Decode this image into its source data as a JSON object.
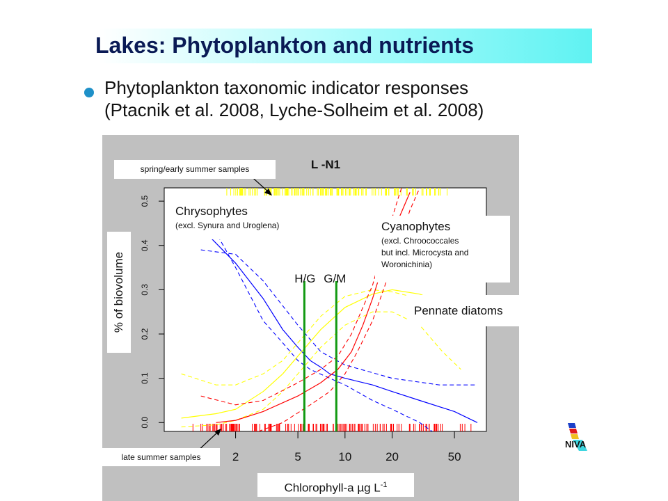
{
  "title": "Lakes: Phytoplankton and nutrients",
  "bullet": {
    "line1": "Phytoplankton taxonomic indicator responses",
    "line2": "(Ptacnik et al. 2008, Lyche-Solheim et al. 2008)"
  },
  "colors": {
    "bullet": "#1e90c8",
    "chrysophytes": "#0000ff",
    "diatoms": "#ffff00",
    "cyanophytes": "#ff0000",
    "boundary": "#119911",
    "panel": "#c0c0c0"
  },
  "annotations": {
    "spring_samples": "spring/early summer samples",
    "late_samples": "late summer samples",
    "chrysophytes_title": "Chrysophytes",
    "chrysophytes_sub": "(excl. Synura and Uroglena)",
    "cyanophytes_title": "Cyanophytes",
    "cyanophytes_sub1": "(excl. Chroococcales",
    "cyanophytes_sub2": "but incl. Microcysta and",
    "cyanophytes_sub3": "Woronichinia)",
    "pennate_diatoms": "Pennate diatoms",
    "y_label": "% of biovolume",
    "x_label_main": "Chlorophyll-a µg L",
    "x_label_sup": "-1"
  },
  "logo": {
    "text": "NIVA"
  },
  "chart_data": {
    "type": "line",
    "title": "L -N1",
    "x_scale": "log",
    "xlabel": "Chlorophyll-a µg L-1",
    "ylabel": "% of biovolume",
    "xlim": [
      0.7,
      80
    ],
    "ylim": [
      -0.02,
      0.53
    ],
    "x_ticks": [
      {
        "value": 2,
        "label": "2"
      },
      {
        "value": 5,
        "label": "5"
      },
      {
        "value": 10,
        "label": "10"
      },
      {
        "value": 20,
        "label": "20"
      },
      {
        "value": 50,
        "label": "50"
      }
    ],
    "y_ticks": [
      {
        "value": 0.0,
        "label": "0.0"
      },
      {
        "value": 0.1,
        "label": "0.1"
      },
      {
        "value": 0.2,
        "label": "0.2"
      },
      {
        "value": 0.3,
        "label": "0.3"
      },
      {
        "value": 0.4,
        "label": "0.4"
      },
      {
        "value": 0.5,
        "label": "0.5"
      }
    ],
    "boundaries": [
      {
        "label": "H/G",
        "x": 5.5
      },
      {
        "label": "G/M",
        "x": 8.8
      }
    ],
    "series": [
      {
        "name": "Chrysophytes",
        "color": "#0000ff",
        "fit": [
          [
            1.2,
            0.44
          ],
          [
            2,
            0.36
          ],
          [
            3,
            0.28
          ],
          [
            4,
            0.21
          ],
          [
            5,
            0.17
          ],
          [
            6,
            0.14
          ],
          [
            7,
            0.125
          ],
          [
            8,
            0.11
          ],
          [
            10,
            0.1
          ],
          [
            15,
            0.085
          ],
          [
            20,
            0.07
          ],
          [
            30,
            0.05
          ],
          [
            50,
            0.025
          ],
          [
            70,
            0.0
          ]
        ],
        "upper": [
          [
            1.2,
            0.39
          ],
          [
            2,
            0.38
          ],
          [
            3,
            0.32
          ],
          [
            5,
            0.22
          ],
          [
            7,
            0.16
          ],
          [
            10,
            0.13
          ],
          [
            20,
            0.1
          ],
          [
            40,
            0.085
          ],
          [
            70,
            0.085
          ]
        ],
        "lower": [
          [
            1.2,
            0.49
          ],
          [
            2,
            0.35
          ],
          [
            3,
            0.23
          ],
          [
            4,
            0.18
          ],
          [
            5,
            0.14
          ],
          [
            6,
            0.12
          ],
          [
            8,
            0.1
          ],
          [
            10,
            0.085
          ],
          [
            15,
            0.05
          ],
          [
            20,
            0.03
          ],
          [
            30,
            0.0
          ],
          [
            36,
            -0.02
          ]
        ]
      },
      {
        "name": "Pennate diatoms",
        "color": "#ffff00",
        "fit": [
          [
            0.9,
            0.01
          ],
          [
            1.5,
            0.02
          ],
          [
            2,
            0.03
          ],
          [
            3,
            0.07
          ],
          [
            4,
            0.11
          ],
          [
            5,
            0.15
          ],
          [
            7,
            0.21
          ],
          [
            10,
            0.26
          ],
          [
            15,
            0.29
          ],
          [
            20,
            0.3
          ],
          [
            30,
            0.29
          ],
          [
            42,
            0.27
          ],
          [
            55,
            0.22
          ]
        ],
        "upper": [
          [
            0.9,
            0.11
          ],
          [
            1.5,
            0.085
          ],
          [
            2,
            0.085
          ],
          [
            3,
            0.11
          ],
          [
            4,
            0.14
          ],
          [
            5,
            0.18
          ],
          [
            7,
            0.24
          ],
          [
            10,
            0.285
          ],
          [
            15,
            0.3
          ],
          [
            20,
            0.295
          ],
          [
            30,
            0.28
          ],
          [
            55,
            0.23
          ]
        ],
        "lower": [
          [
            0.9,
            -0.01
          ],
          [
            1.5,
            -0.005
          ],
          [
            2,
            0.005
          ],
          [
            3,
            0.03
          ],
          [
            4,
            0.07
          ],
          [
            5,
            0.11
          ],
          [
            7,
            0.17
          ],
          [
            10,
            0.22
          ],
          [
            15,
            0.25
          ],
          [
            20,
            0.25
          ],
          [
            30,
            0.22
          ],
          [
            42,
            0.16
          ],
          [
            55,
            0.12
          ]
        ]
      },
      {
        "name": "Cyanophytes",
        "color": "#ff0000",
        "fit": [
          [
            1.5,
            0.0
          ],
          [
            2,
            0.005
          ],
          [
            3,
            0.025
          ],
          [
            5,
            0.06
          ],
          [
            7,
            0.09
          ],
          [
            9,
            0.12
          ],
          [
            11,
            0.16
          ],
          [
            13,
            0.22
          ],
          [
            15,
            0.28
          ],
          [
            18,
            0.37
          ],
          [
            22,
            0.46
          ],
          [
            26,
            0.52
          ]
        ],
        "upper": [
          [
            1.2,
            0.06
          ],
          [
            2,
            0.04
          ],
          [
            3,
            0.05
          ],
          [
            5,
            0.09
          ],
          [
            7,
            0.12
          ],
          [
            9,
            0.15
          ],
          [
            11,
            0.2
          ],
          [
            13,
            0.26
          ],
          [
            15,
            0.31
          ],
          [
            18,
            0.41
          ],
          [
            22,
            0.51
          ],
          [
            24,
            0.55
          ]
        ],
        "lower": [
          [
            2.8,
            -0.02
          ],
          [
            4,
            0.0
          ],
          [
            6,
            0.04
          ],
          [
            8,
            0.07
          ],
          [
            10,
            0.11
          ],
          [
            12,
            0.16
          ],
          [
            15,
            0.23
          ],
          [
            18,
            0.31
          ],
          [
            22,
            0.4
          ],
          [
            26,
            0.48
          ],
          [
            30,
            0.53
          ]
        ]
      }
    ],
    "rug_top": {
      "color": "#ffff00",
      "range": [
        1.5,
        55
      ],
      "description": "spring/early summer samples"
    },
    "rug_bottom": {
      "color": "#ff0000",
      "range": [
        1.0,
        70
      ],
      "description": "late summer samples"
    }
  }
}
